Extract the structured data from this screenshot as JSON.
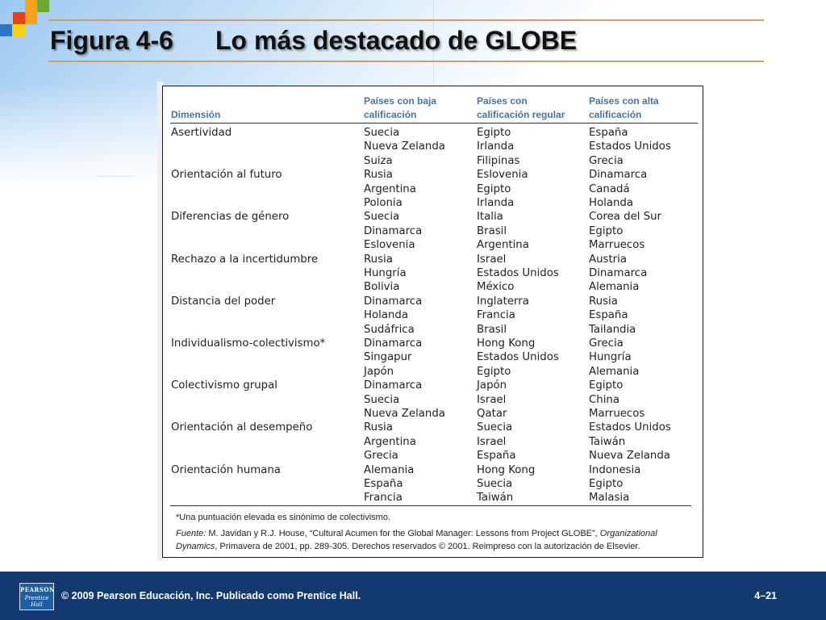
{
  "slide": {
    "figure_number": "Figura 4-6",
    "title": "Lo más destacado de GLOBE"
  },
  "table": {
    "headers": {
      "dimension": "Dimensión",
      "low_line1": "Países con baja",
      "low_line2": "calificación",
      "regular_line1": "Países con",
      "regular_line2": "calificación regular",
      "high_line1": "Países con alta",
      "high_line2": "calificación"
    },
    "rows": [
      {
        "dimension": "Asertividad",
        "low": [
          "Suecia",
          "Nueva Zelanda",
          "Suiza"
        ],
        "regular": [
          "Egipto",
          "Irlanda",
          "Filipinas"
        ],
        "high": [
          "España",
          "Estados Unidos",
          "Grecia"
        ]
      },
      {
        "dimension": "Orientación al futuro",
        "low": [
          "Rusia",
          "Argentina",
          "Polonia"
        ],
        "regular": [
          "Eslovenia",
          "Egipto",
          "Irlanda"
        ],
        "high": [
          "Dinamarca",
          "Canadá",
          "Holanda"
        ]
      },
      {
        "dimension": "Diferencias de género",
        "low": [
          "Suecia",
          "Dinamarca",
          "Eslovenia"
        ],
        "regular": [
          "Italia",
          "Brasil",
          "Argentina"
        ],
        "high": [
          "Corea del Sur",
          "Egipto",
          "Marruecos"
        ]
      },
      {
        "dimension": "Rechazo a la incertidumbre",
        "low": [
          "Rusia",
          "Hungría",
          "Bolivia"
        ],
        "regular": [
          "Israel",
          "Estados Unidos",
          "México"
        ],
        "high": [
          "Austria",
          "Dinamarca",
          "Alemania"
        ]
      },
      {
        "dimension": "Distancia del poder",
        "low": [
          "Dinamarca",
          "Holanda",
          "Sudáfrica"
        ],
        "regular": [
          "Inglaterra",
          "Francia",
          "Brasil"
        ],
        "high": [
          "Rusia",
          "España",
          "Tailandia"
        ]
      },
      {
        "dimension": "Individualismo-colectivismo*",
        "low": [
          "Dinamarca",
          "Singapur",
          "Japón"
        ],
        "regular": [
          "Hong Kong",
          "Estados Unidos",
          "Egipto"
        ],
        "high": [
          "Grecia",
          "Hungría",
          "Alemania"
        ]
      },
      {
        "dimension": "Colectivismo grupal",
        "low": [
          "Dinamarca",
          "Suecia",
          "Nueva Zelanda"
        ],
        "regular": [
          "Japón",
          "Israel",
          "Qatar"
        ],
        "high": [
          "Egipto",
          "China",
          "Marruecos"
        ]
      },
      {
        "dimension": "Orientación al desempeño",
        "low": [
          "Rusia",
          "Argentina",
          "Grecia"
        ],
        "regular": [
          "Suecia",
          "Israel",
          "España"
        ],
        "high": [
          "Estados Unidos",
          "Taiwán",
          "Nueva Zelanda"
        ]
      },
      {
        "dimension": "Orientación humana",
        "low": [
          "Alemania",
          "España",
          "Francia"
        ],
        "regular": [
          "Hong Kong",
          "Suecia",
          "Taiwán"
        ],
        "high": [
          "Indonesia",
          "Egipto",
          "Malasia"
        ]
      }
    ],
    "footnote": "*Una puntuación elevada es sinónimo de colectivismo.",
    "source": {
      "label": "Fuente:",
      "text_before": " M. Javidan y R.J. House, “Cultural Acumen for the Global Manager: Lessons from Project GLOBE”, ",
      "journal": "Organizational Dynamics",
      "text_after": ", Primavera de 2001, pp. 289-305. Derechos reservados © 2001. Reimpreso con la autorización de Elsevier."
    }
  },
  "footer": {
    "logo_line1": "PEARSON",
    "logo_line2": "Prentice",
    "logo_line3": "Hall",
    "copyright": "© 2009 Pearson Educación, Inc. Publicado como Prentice Hall.",
    "slide_number": "4–21"
  },
  "colors": {
    "footer_bg": "#123a70",
    "header_text": "#4a72a6",
    "title_rule": "#c8a070",
    "square_red": "#e8401c",
    "square_orange": "#f7a21b",
    "square_yellow": "#f5d40f",
    "square_green": "#6aab2e",
    "square_blue": "#2d76c4"
  }
}
